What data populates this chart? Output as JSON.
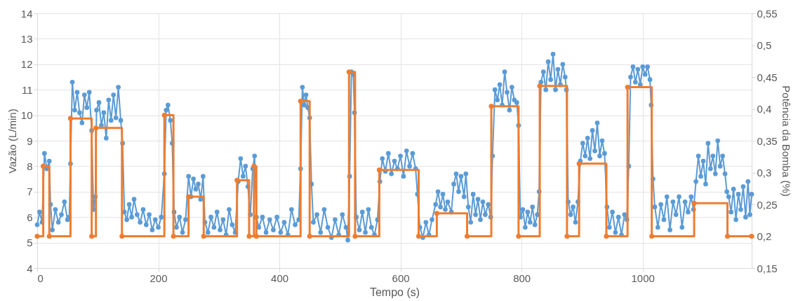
{
  "chart_data": {
    "type": "line",
    "xlabel": "Tempo (s)",
    "ylabel": "Vazão (L/min)",
    "y2label": "Potência da Bomba (%)",
    "xlim": [
      0,
      1180
    ],
    "xticks": [
      0,
      200,
      400,
      600,
      800,
      1000
    ],
    "ylim": [
      4,
      14
    ],
    "yticks": [
      4,
      5,
      6,
      7,
      8,
      9,
      10,
      11,
      12,
      13,
      14
    ],
    "y2lim": [
      0.15,
      0.55
    ],
    "y2ticks": [
      {
        "value": 0.15,
        "label": "0,15"
      },
      {
        "value": 0.2,
        "label": "0,2"
      },
      {
        "value": 0.25,
        "label": "0,25"
      },
      {
        "value": 0.3,
        "label": "0,3"
      },
      {
        "value": 0.35,
        "label": "0,35"
      },
      {
        "value": 0.4,
        "label": "0,4"
      },
      {
        "value": 0.45,
        "label": "0,45"
      },
      {
        "value": 0.5,
        "label": "0,5"
      },
      {
        "value": 0.55,
        "label": "0,55"
      }
    ],
    "grid": true,
    "marker": "circle",
    "series": [
      {
        "color": "#5b9bd5",
        "x": [
          0,
          4,
          8,
          12,
          16,
          20,
          22,
          25,
          30,
          35,
          40,
          45,
          50,
          53,
          55,
          58,
          62,
          66,
          70,
          74,
          78,
          82,
          86,
          90,
          93,
          96,
          98,
          102,
          106,
          110,
          114,
          118,
          122,
          126,
          130,
          134,
          138,
          141,
          144,
          148,
          152,
          156,
          160,
          165,
          170,
          175,
          180,
          185,
          190,
          195,
          200,
          205,
          210,
          213,
          216,
          220,
          223,
          226,
          230,
          235,
          240,
          245,
          250,
          254,
          258,
          262,
          266,
          270,
          274,
          277,
          282,
          287,
          292,
          297,
          302,
          307,
          312,
          317,
          322,
          327,
          332,
          336,
          340,
          344,
          348,
          352,
          356,
          359,
          362,
          366,
          372,
          378,
          384,
          390,
          396,
          402,
          408,
          414,
          420,
          426,
          432,
          435,
          438,
          441,
          444,
          447,
          450,
          453,
          456,
          462,
          468,
          474,
          480,
          486,
          492,
          498,
          504,
          510,
          513,
          516,
          519,
          522,
          524,
          527,
          532,
          537,
          542,
          547,
          552,
          557,
          562,
          566,
          570,
          575,
          580,
          585,
          590,
          595,
          600,
          605,
          610,
          615,
          620,
          625,
          628,
          632,
          637,
          642,
          647,
          652,
          658,
          662,
          666,
          670,
          674,
          678,
          684,
          688,
          692,
          696,
          700,
          705,
          708,
          712,
          716,
          720,
          724,
          728,
          732,
          736,
          740,
          745,
          749,
          752,
          756,
          760,
          764,
          768,
          772,
          776,
          780,
          784,
          788,
          792,
          795,
          798,
          802,
          806,
          810,
          814,
          818,
          822,
          826,
          829,
          832,
          836,
          840,
          844,
          848,
          852,
          856,
          860,
          864,
          868,
          872,
          874,
          877,
          881,
          885,
          889,
          893,
          897,
          901,
          905,
          909,
          913,
          917,
          921,
          925,
          929,
          933,
          937,
          941,
          945,
          950,
          955,
          960,
          965,
          970,
          974,
          977,
          980,
          984,
          988,
          992,
          996,
          1000,
          1004,
          1008,
          1012,
          1014,
          1017,
          1020,
          1025,
          1030,
          1035,
          1040,
          1045,
          1050,
          1055,
          1060,
          1065,
          1070,
          1075,
          1080,
          1084,
          1088,
          1092,
          1096,
          1100,
          1104,
          1108,
          1112,
          1116,
          1120,
          1124,
          1128,
          1132,
          1136,
          1139,
          1142,
          1146,
          1150,
          1154,
          1158,
          1162,
          1166,
          1170,
          1174,
          1177,
          1180
        ],
        "values": [
          5.7,
          6.2,
          5.8,
          8.5,
          7.9,
          8.2,
          6.5,
          5.5,
          6.3,
          5.8,
          6.1,
          6.6,
          5.9,
          6.0,
          8.1,
          11.3,
          10.2,
          10.9,
          10.1,
          9.7,
          10.8,
          10.3,
          10.9,
          9.4,
          6.3,
          6.8,
          10.2,
          10.5,
          9.6,
          10.1,
          9.1,
          10.6,
          9.8,
          10.8,
          9.9,
          11.1,
          9.8,
          8.9,
          6.2,
          5.9,
          6.5,
          6.0,
          6.7,
          6.1,
          5.8,
          6.3,
          5.7,
          6.1,
          5.5,
          5.9,
          5.6,
          6.0,
          7.7,
          10.2,
          10.4,
          9.8,
          8.9,
          6.2,
          5.6,
          6.0,
          5.4,
          5.9,
          7.6,
          6.8,
          7.5,
          7.1,
          7.3,
          6.7,
          7.6,
          5.8,
          5.4,
          6.0,
          5.6,
          6.2,
          5.5,
          5.9,
          5.3,
          6.3,
          5.7,
          5.4,
          7.4,
          8.3,
          7.6,
          8.0,
          7.2,
          6.1,
          7.9,
          8.4,
          6.0,
          5.6,
          6.0,
          5.4,
          5.9,
          5.5,
          6.0,
          5.4,
          5.8,
          5.3,
          6.3,
          5.7,
          5.9,
          7.9,
          11.1,
          10.4,
          10.8,
          10.3,
          9.9,
          7.3,
          5.8,
          6.1,
          5.4,
          6.3,
          5.6,
          5.2,
          5.9,
          5.3,
          6.1,
          5.6,
          5.1,
          7.6,
          11.7,
          11.6,
          10.1,
          6.0,
          5.5,
          6.2,
          5.4,
          6.3,
          5.6,
          5.3,
          5.9,
          7.4,
          8.3,
          7.8,
          8.5,
          7.7,
          8.2,
          7.9,
          8.4,
          7.6,
          8.6,
          8.0,
          8.5,
          7.9,
          6.9,
          5.6,
          5.2,
          5.8,
          5.3,
          5.9,
          6.5,
          7.0,
          6.4,
          6.9,
          6.3,
          6.6,
          6.2,
          7.3,
          7.7,
          7.0,
          7.6,
          6.8,
          7.7,
          6.4,
          5.8,
          6.9,
          6.1,
          6.7,
          5.9,
          6.6,
          6.1,
          6.5,
          6.0,
          8.4,
          11.0,
          10.6,
          11.2,
          10.4,
          11.7,
          10.9,
          10.2,
          11.1,
          10.6,
          10.5,
          9.6,
          6.0,
          6.3,
          5.6,
          6.2,
          5.8,
          6.4,
          5.7,
          6.1,
          7.0,
          11.3,
          11.7,
          11.0,
          12.1,
          11.4,
          12.4,
          11.0,
          11.8,
          11.2,
          12.0,
          11.5,
          11.0,
          6.6,
          6.1,
          6.4,
          5.8,
          6.6,
          8.2,
          8.9,
          8.4,
          9.1,
          8.3,
          9.4,
          8.6,
          9.7,
          8.4,
          9.0,
          8.5,
          6.4,
          5.6,
          6.2,
          5.4,
          6.0,
          5.3,
          6.1,
          5.9,
          8.0,
          11.5,
          11.9,
          11.3,
          11.8,
          11.2,
          11.9,
          11.6,
          11.9,
          11.4,
          10.4,
          7.5,
          6.4,
          5.6,
          6.5,
          5.9,
          6.8,
          5.5,
          6.6,
          6.1,
          6.8,
          5.6,
          6.6,
          6.2,
          6.8,
          6.3,
          7.4,
          8.4,
          7.6,
          8.2,
          7.3,
          8.9,
          7.9,
          8.4,
          7.7,
          9.0,
          8.0,
          8.4,
          7.7,
          7.0,
          6.8,
          6.2,
          7.1,
          5.9,
          6.9,
          6.3,
          7.2,
          6.0,
          7.4,
          6.1,
          6.9
        ]
      },
      {
        "type": "step",
        "axis": "y2",
        "color": "#ed7d31",
        "x": [
          0,
          10,
          20,
          55,
          90,
          97,
          140,
          210,
          225,
          250,
          275,
          330,
          350,
          358,
          362,
          435,
          450,
          515,
          525,
          565,
          630,
          660,
          710,
          750,
          795,
          830,
          875,
          895,
          940,
          975,
          1015,
          1085,
          1140,
          1180
        ],
        "values": [
          0.2,
          0.31,
          0.2,
          0.385,
          0.2,
          0.37,
          0.2,
          0.39,
          0.2,
          0.262,
          0.2,
          0.288,
          0.2,
          0.31,
          0.2,
          0.412,
          0.2,
          0.458,
          0.2,
          0.304,
          0.2,
          0.236,
          0.2,
          0.404,
          0.2,
          0.436,
          0.2,
          0.314,
          0.2,
          0.434,
          0.2,
          0.252,
          0.2,
          0.2
        ]
      }
    ]
  }
}
